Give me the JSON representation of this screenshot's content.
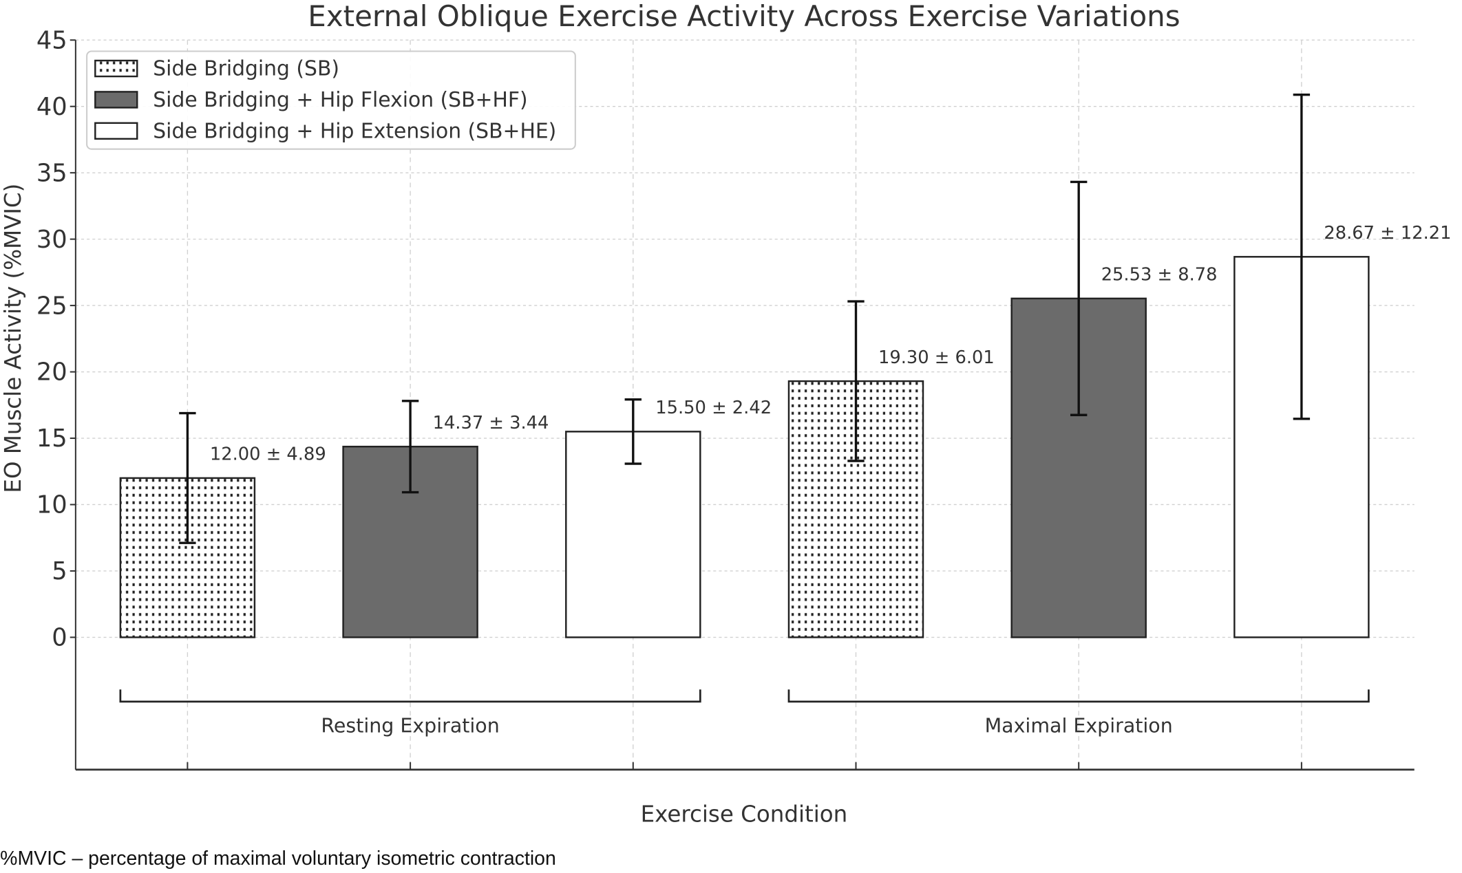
{
  "chart_data": {
    "type": "bar",
    "title": "External Oblique Exercise Activity Across Exercise Variations",
    "xlabel": "Exercise Condition",
    "ylabel": "EO Muscle Activity (%MVIC)",
    "ylim": [
      0,
      45
    ],
    "yticks": [
      "0",
      "5",
      "10",
      "15",
      "20",
      "25",
      "30",
      "35",
      "40",
      "45"
    ],
    "grid": true,
    "legend_position": "top-left",
    "groups": [
      "Resting Expiration",
      "Maximal Expiration"
    ],
    "series": [
      {
        "name": "Side Bridging (SB)",
        "fill": "dotted",
        "values": [
          12.0,
          19.3
        ],
        "errors": [
          4.89,
          6.01
        ],
        "labels": [
          "12.00 ± 4.89",
          "19.30 ± 6.01"
        ]
      },
      {
        "name": "Side Bridging + Hip Flexion (SB+HF)",
        "fill": "#6b6b6b",
        "values": [
          14.37,
          25.53
        ],
        "errors": [
          3.44,
          8.78
        ],
        "labels": [
          "14.37 ± 3.44",
          "25.53 ± 8.78"
        ]
      },
      {
        "name": "Side Bridging + Hip Extension (SB+HE)",
        "fill": "#ffffff",
        "values": [
          15.5,
          28.67
        ],
        "errors": [
          2.42,
          12.21
        ],
        "labels": [
          "15.50 ± 2.42",
          "28.67 ± 12.21"
        ]
      }
    ]
  },
  "footnote": "%MVIC – percentage of maximal voluntary isometric contraction"
}
